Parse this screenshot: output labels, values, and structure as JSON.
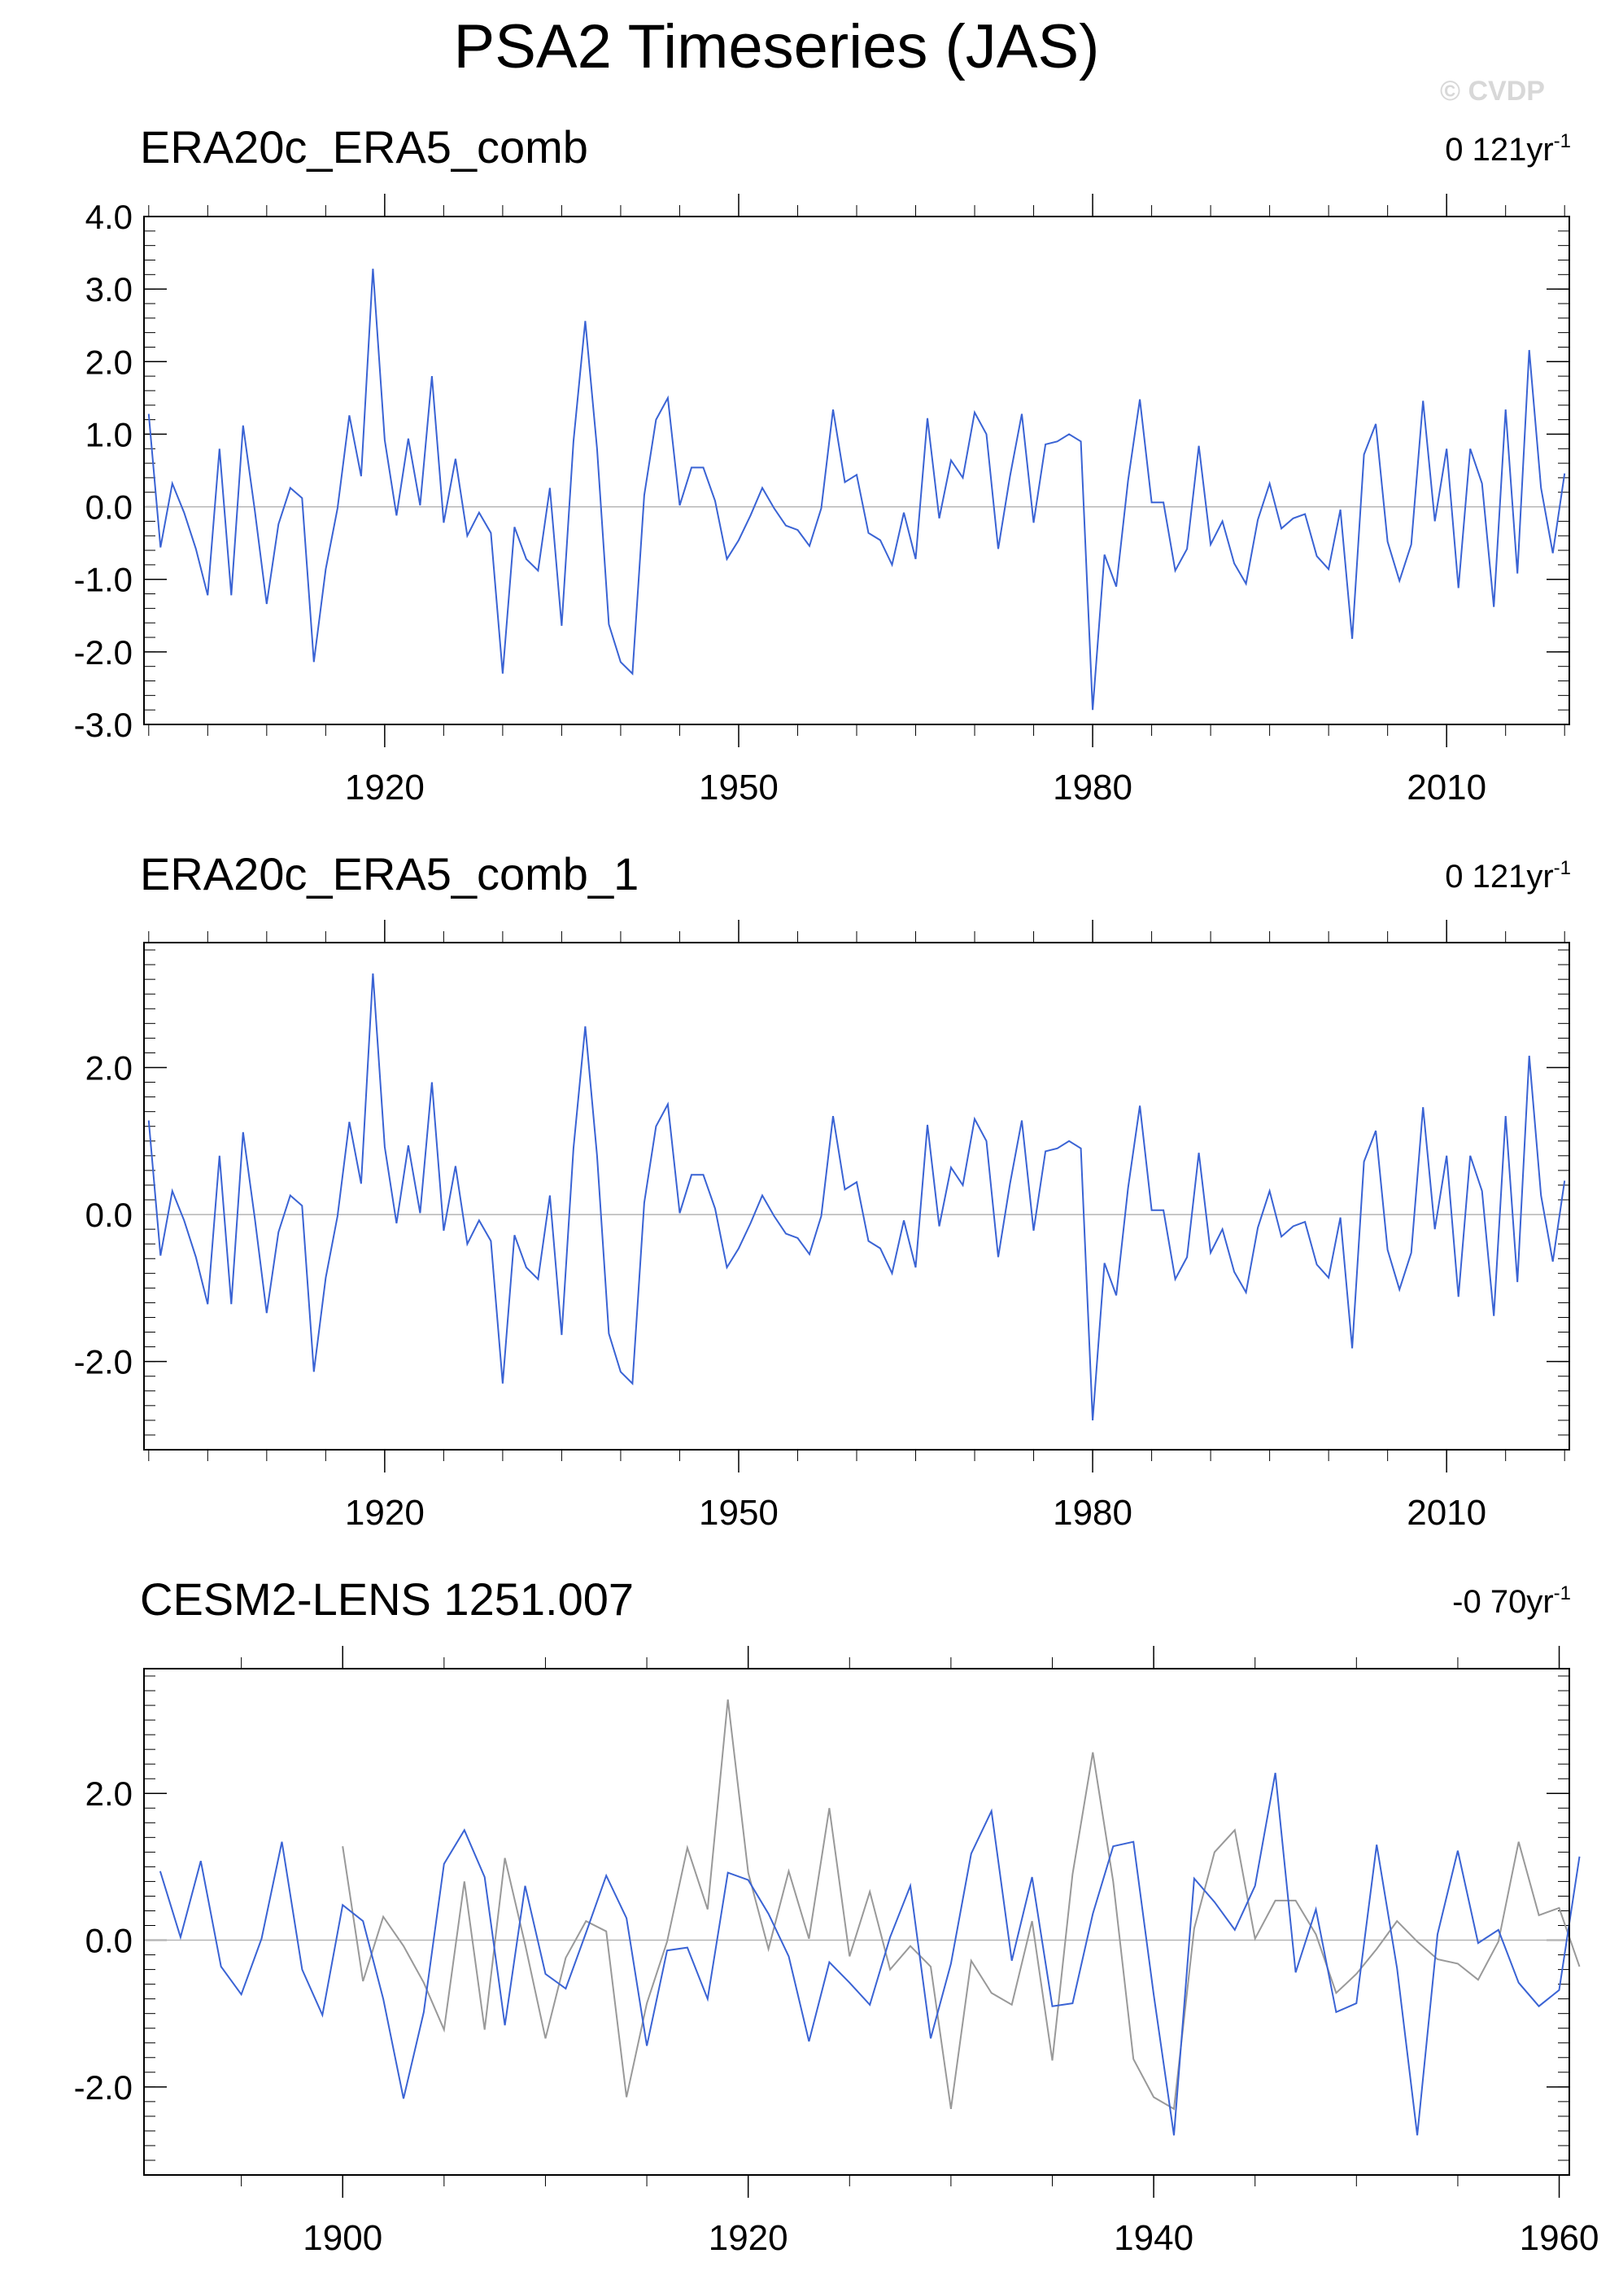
{
  "title": "PSA2 Timeseries (JAS)",
  "watermark": "© CVDP",
  "colors": {
    "obs": "#3a63d4",
    "model": "#999999",
    "zero": "#b4b4b4",
    "frame": "#000000"
  },
  "panels": [
    {
      "label": "ERA20c_ERA5_comb",
      "trend_value": "0 121yr",
      "trend_exp": "-1"
    },
    {
      "label": "ERA20c_ERA5_comb_1",
      "trend_value": "0 121yr",
      "trend_exp": "-1"
    },
    {
      "label": "CESM2-LENS 1251.007",
      "trend_value": "-0 70yr",
      "trend_exp": "-1"
    }
  ],
  "chart_data": [
    {
      "type": "line",
      "title": "ERA20c_ERA5_comb",
      "xlim": [
        1899.6,
        2020.4
      ],
      "ylim": [
        -3.0,
        4.0
      ],
      "xticks": [
        1920,
        1950,
        1980,
        2010
      ],
      "yticks": [
        -3.0,
        -2.0,
        -1.0,
        0.0,
        1.0,
        2.0,
        3.0,
        4.0
      ],
      "ytick_labels": [
        "-3.0",
        "-2.0",
        "-1.0",
        "0.0",
        "1.0",
        "2.0",
        "3.0",
        "4.0"
      ],
      "series": [
        {
          "x_start": 1900,
          "values": [
            1.28,
            -0.56,
            0.32,
            -0.08,
            -0.58,
            -1.22,
            0.8,
            -1.22,
            1.12,
            -0.06,
            -1.34,
            -0.24,
            0.26,
            0.12,
            -2.14,
            -0.86,
            -0.02,
            1.26,
            0.42,
            3.28,
            0.92,
            -0.12,
            0.94,
            0.02,
            1.8,
            -0.22,
            0.66,
            -0.4,
            -0.08,
            -0.36,
            -2.3,
            -0.28,
            -0.72,
            -0.88,
            0.26,
            -1.64,
            0.9,
            2.56,
            0.8,
            -1.62,
            -2.14,
            -2.3,
            0.16,
            1.2,
            1.5,
            0.02,
            0.54,
            0.54,
            0.08,
            -0.72,
            -0.46,
            -0.12,
            0.26,
            -0.02,
            -0.26,
            -0.32,
            -0.54,
            -0.02,
            1.34,
            0.34,
            0.44,
            -0.36,
            -0.46,
            -0.8,
            -0.08,
            -0.72,
            1.22,
            -0.16,
            0.64,
            0.4,
            1.3,
            1.0,
            -0.58,
            0.42,
            1.28,
            -0.22,
            0.86,
            0.9,
            1.0,
            0.9,
            -2.8,
            -0.66,
            -1.1,
            0.36,
            1.48,
            0.06,
            0.06,
            -0.88,
            -0.58,
            0.84,
            -0.52,
            -0.2,
            -0.78,
            -1.06,
            -0.18,
            0.32,
            -0.3,
            -0.16,
            -0.1,
            -0.68,
            -0.86,
            -0.04,
            -1.82,
            0.72,
            1.14,
            -0.48,
            -1.02,
            -0.52,
            1.46,
            -0.2,
            0.8,
            -1.12,
            0.8,
            0.32,
            -1.38,
            1.34,
            -0.92,
            2.16,
            0.26,
            -0.64,
            0.46
          ]
        }
      ]
    },
    {
      "type": "line",
      "title": "ERA20c_ERA5_comb_1",
      "xlim": [
        1899.6,
        2020.4
      ],
      "ylim": [
        -3.2,
        3.7
      ],
      "xticks": [
        1920,
        1950,
        1980,
        2010
      ],
      "yticks": [
        -2.0,
        0.0,
        2.0
      ],
      "ytick_labels": [
        "-2.0",
        "0.0",
        "2.0"
      ],
      "series": [
        {
          "x_start": 1900,
          "values": [
            1.28,
            -0.56,
            0.32,
            -0.08,
            -0.58,
            -1.22,
            0.8,
            -1.22,
            1.12,
            -0.06,
            -1.34,
            -0.24,
            0.26,
            0.12,
            -2.14,
            -0.86,
            -0.02,
            1.26,
            0.42,
            3.28,
            0.92,
            -0.12,
            0.94,
            0.02,
            1.8,
            -0.22,
            0.66,
            -0.4,
            -0.08,
            -0.36,
            -2.3,
            -0.28,
            -0.72,
            -0.88,
            0.26,
            -1.64,
            0.9,
            2.56,
            0.8,
            -1.62,
            -2.14,
            -2.3,
            0.16,
            1.2,
            1.5,
            0.02,
            0.54,
            0.54,
            0.08,
            -0.72,
            -0.46,
            -0.12,
            0.26,
            -0.02,
            -0.26,
            -0.32,
            -0.54,
            -0.02,
            1.34,
            0.34,
            0.44,
            -0.36,
            -0.46,
            -0.8,
            -0.08,
            -0.72,
            1.22,
            -0.16,
            0.64,
            0.4,
            1.3,
            1.0,
            -0.58,
            0.42,
            1.28,
            -0.22,
            0.86,
            0.9,
            1.0,
            0.9,
            -2.8,
            -0.66,
            -1.1,
            0.36,
            1.48,
            0.06,
            0.06,
            -0.88,
            -0.58,
            0.84,
            -0.52,
            -0.2,
            -0.78,
            -1.06,
            -0.18,
            0.32,
            -0.3,
            -0.16,
            -0.1,
            -0.68,
            -0.86,
            -0.04,
            -1.82,
            0.72,
            1.14,
            -0.48,
            -1.02,
            -0.52,
            1.46,
            -0.2,
            0.8,
            -1.12,
            0.8,
            0.32,
            -1.38,
            1.34,
            -0.92,
            2.16,
            0.26,
            -0.64,
            0.46
          ]
        }
      ]
    },
    {
      "type": "line",
      "title": "CESM2-LENS 1251.007",
      "xlim": [
        1890.2,
        1960.5
      ],
      "ylim": [
        -3.2,
        3.7
      ],
      "xticks": [
        1900,
        1920,
        1940,
        1960
      ],
      "yticks": [
        -2.0,
        0.0,
        2.0
      ],
      "ytick_labels": [
        "-2.0",
        "0.0",
        "2.0"
      ],
      "series": [
        {
          "role": "model",
          "x_start": 1891,
          "values": [
            0.94,
            0.04,
            1.08,
            -0.36,
            -0.74,
            0.02,
            1.34,
            -0.4,
            -1.02,
            0.48,
            0.26,
            -0.8,
            -2.16,
            -0.98,
            1.04,
            1.5,
            0.86,
            -1.16,
            0.74,
            -0.46,
            -0.66,
            0.1,
            0.88,
            0.3,
            -1.44,
            -0.14,
            -0.1,
            -0.8,
            0.92,
            0.82,
            0.36,
            -0.22,
            -1.38,
            -0.3,
            -0.58,
            -0.88,
            0.04,
            0.74,
            -1.34,
            -0.32,
            1.18,
            1.76,
            -0.28,
            0.86,
            -0.9,
            -0.86,
            0.36,
            1.28,
            1.34,
            -0.74,
            -2.66,
            0.84,
            0.52,
            0.14,
            0.74,
            2.28,
            -0.44,
            0.42,
            -0.98,
            -0.86,
            1.3,
            -0.38,
            -2.66,
            0.08,
            1.22,
            -0.04,
            0.14,
            -0.58,
            -0.9,
            -0.68,
            1.14
          ]
        },
        {
          "role": "observed",
          "x_start": 1900,
          "values": [
            1.28,
            -0.56,
            0.32,
            -0.08,
            -0.58,
            -1.22,
            0.8,
            -1.22,
            1.12,
            -0.06,
            -1.34,
            -0.24,
            0.26,
            0.12,
            -2.14,
            -0.86,
            -0.02,
            1.26,
            0.42,
            3.28,
            0.92,
            -0.12,
            0.94,
            0.02,
            1.8,
            -0.22,
            0.66,
            -0.4,
            -0.08,
            -0.36,
            -2.3,
            -0.28,
            -0.72,
            -0.88,
            0.26,
            -1.64,
            0.9,
            2.56,
            0.8,
            -1.62,
            -2.14,
            -2.3,
            0.16,
            1.2,
            1.5,
            0.02,
            0.54,
            0.54,
            0.08,
            -0.72,
            -0.46,
            -0.12,
            0.26,
            -0.02,
            -0.26,
            -0.32,
            -0.54,
            -0.02,
            1.34,
            0.34,
            0.44,
            -0.36
          ]
        }
      ]
    }
  ]
}
